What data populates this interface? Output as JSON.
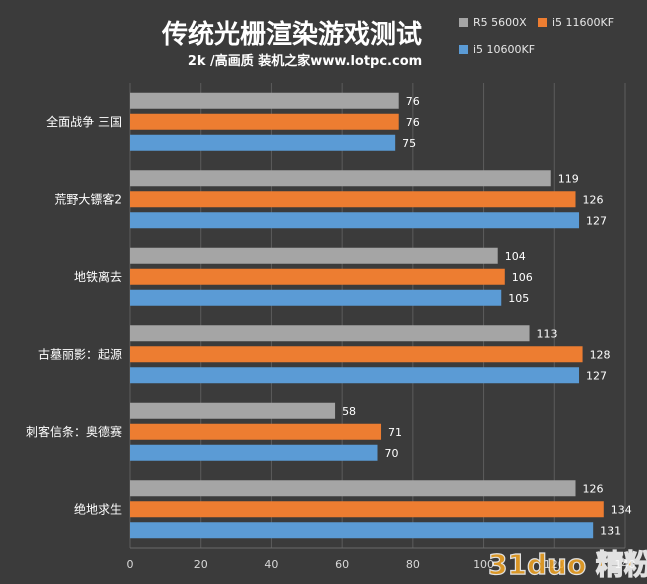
{
  "chart_data": {
    "type": "bar",
    "orientation": "horizontal",
    "title": "传统光栅渲染游戏测试",
    "subtitle": "2k /高画质 装机之家www.lotpc.com",
    "categories": [
      "全面战争 三国",
      "荒野大镖客2",
      "地铁离去",
      "古墓丽影：起源",
      "刺客信条：奥德赛",
      "绝地求生"
    ],
    "series": [
      {
        "name": "R5 5600X",
        "values": [
          76,
          119,
          104,
          113,
          58,
          126
        ]
      },
      {
        "name": "i5 11600KF",
        "values": [
          76,
          126,
          106,
          128,
          71,
          134
        ]
      },
      {
        "name": "i5 10600KF",
        "values": [
          75,
          127,
          105,
          127,
          70,
          131
        ]
      }
    ],
    "xlim": [
      0,
      140
    ],
    "xticks": [
      0,
      20,
      40,
      60,
      80,
      100,
      120,
      140
    ],
    "grid": true,
    "legend_position": "top-right",
    "colors": [
      "#a5a5a5",
      "#ed7d31",
      "#5b9bd5"
    ],
    "watermark": "31duo 精粉之家"
  }
}
